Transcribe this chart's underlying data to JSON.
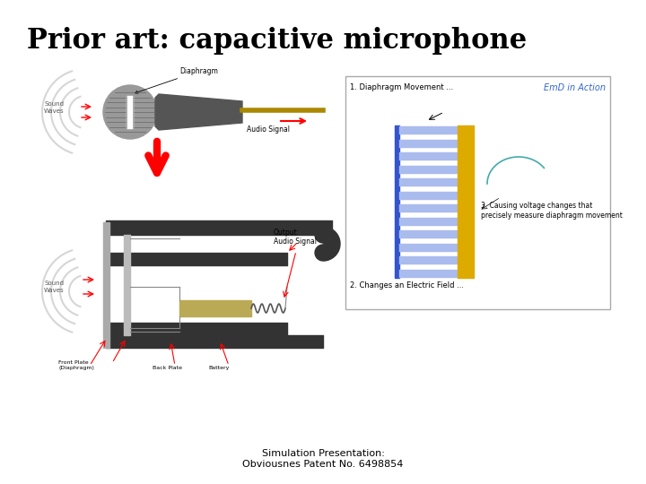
{
  "title": "Prior art: capacitive microphone",
  "title_fontsize": 22,
  "title_font": "serif",
  "footer_line1": "Simulation Presentation:",
  "footer_line2": "Obviousnes Patent No. 6498854",
  "footer_fontsize": 8,
  "bg_color": "#ffffff",
  "text_color": "#000000"
}
